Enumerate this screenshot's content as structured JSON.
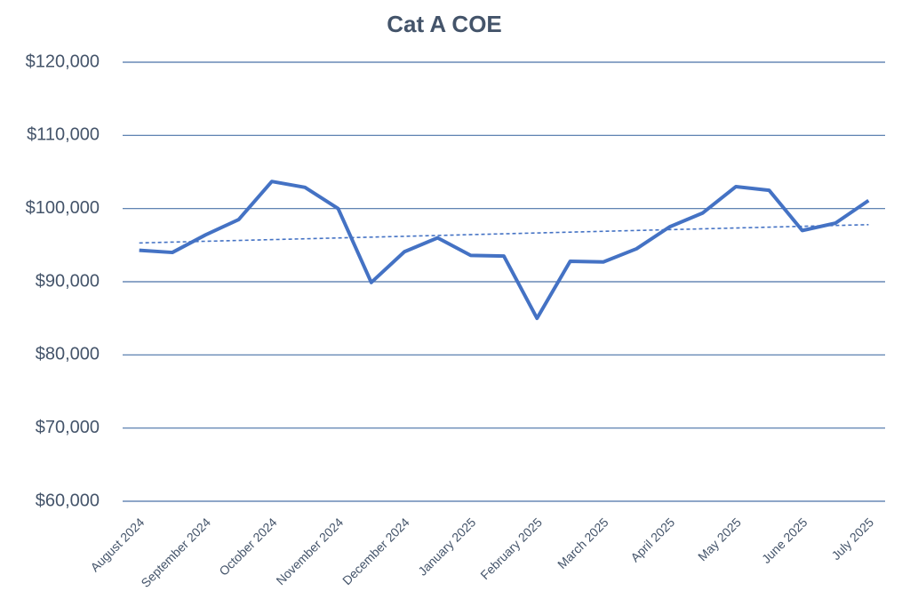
{
  "chart_data": {
    "type": "line",
    "title": "Cat A COE",
    "categories": [
      "August 2024",
      null,
      "September 2024",
      null,
      "October 2024",
      null,
      "November 2024",
      null,
      "December 2024",
      null,
      "January 2025",
      null,
      "February 2025",
      null,
      "March 2025",
      null,
      "April 2025",
      null,
      "May 2025",
      null,
      "June 2025",
      null,
      "July 2025"
    ],
    "values": [
      94300,
      94000,
      96400,
      98500,
      103700,
      102900,
      100000,
      89900,
      94100,
      96000,
      93600,
      93500,
      85000,
      92800,
      92700,
      94500,
      97500,
      99400,
      103000,
      102500,
      97000,
      98000,
      101100
    ],
    "color": "#4472c4",
    "trendline": [
      95300,
      97800
    ],
    "ylim": [
      60000,
      120000
    ],
    "yticks": [
      {
        "value": 60000,
        "label": "$60,000"
      },
      {
        "value": 70000,
        "label": "$70,000"
      },
      {
        "value": 80000,
        "label": "$80,000"
      },
      {
        "value": 90000,
        "label": "$90,000"
      },
      {
        "value": 100000,
        "label": "$100,000"
      },
      {
        "value": 110000,
        "label": "$110,000"
      },
      {
        "value": 120000,
        "label": "$120,000"
      }
    ],
    "grid": true
  }
}
